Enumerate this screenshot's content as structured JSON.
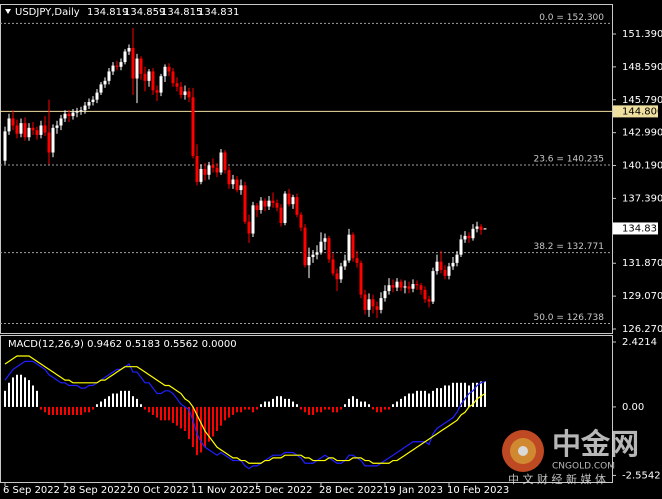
{
  "chart_data": {
    "type": "candlestick",
    "title": "USDJPY,Daily",
    "categories": [
      "6 Sep 2022",
      null,
      null,
      null,
      null,
      null,
      null,
      null,
      null,
      null,
      null,
      null,
      null,
      null,
      null,
      "28 Sep 2022",
      null,
      null,
      null,
      null,
      null,
      null,
      null,
      null,
      null,
      null,
      null,
      null,
      null,
      null,
      null,
      "20 Oct 2022",
      null,
      null,
      null,
      null,
      null,
      null,
      null,
      null,
      null,
      null,
      null,
      null,
      null,
      null,
      null,
      "11 Nov 2022",
      null,
      null,
      null,
      null,
      null,
      null,
      null,
      null,
      null,
      null,
      null,
      null,
      null,
      null,
      null,
      "5 Dec 2022",
      null,
      null,
      null,
      null,
      null,
      null,
      null,
      null,
      null,
      null,
      null,
      null,
      null,
      null,
      null,
      "28 Dec 2022",
      null,
      null,
      null,
      null,
      null,
      null,
      null,
      null,
      null,
      null,
      null,
      null,
      null,
      null,
      null,
      "19 Jan 2023",
      null,
      null,
      null,
      null,
      null,
      null,
      null,
      null,
      null,
      null,
      null,
      null,
      null,
      null,
      null,
      "10 Feb 2023",
      null,
      null,
      null,
      null,
      null,
      null,
      null,
      null,
      null
    ],
    "candles": [
      [
        140.6,
        143.5,
        140.3,
        143.1
      ],
      [
        143.1,
        144.6,
        142.8,
        144.2
      ],
      [
        144.2,
        144.9,
        143.2,
        143.6
      ],
      [
        143.6,
        144.1,
        142.5,
        142.9
      ],
      [
        142.9,
        144.2,
        142.6,
        143.8
      ],
      [
        143.8,
        144.3,
        142.3,
        142.6
      ],
      [
        142.6,
        143.8,
        142.3,
        143.4
      ],
      [
        143.4,
        143.9,
        142.8,
        143.2
      ],
      [
        143.2,
        143.5,
        142.4,
        142.8
      ],
      [
        142.8,
        144.0,
        142.5,
        143.6
      ],
      [
        143.6,
        144.4,
        142.7,
        143.0
      ],
      [
        143.0,
        145.8,
        140.3,
        141.3
      ],
      [
        141.3,
        143.7,
        140.9,
        143.4
      ],
      [
        143.4,
        144.0,
        142.9,
        143.6
      ],
      [
        143.6,
        144.5,
        143.2,
        144.2
      ],
      [
        144.2,
        144.9,
        143.9,
        144.6
      ],
      [
        144.6,
        144.9,
        143.9,
        144.4
      ],
      [
        144.4,
        145.0,
        144.1,
        144.7
      ],
      [
        144.7,
        145.1,
        144.3,
        144.8
      ],
      [
        144.8,
        145.2,
        144.5,
        144.9
      ],
      [
        144.9,
        145.6,
        144.6,
        145.3
      ],
      [
        145.3,
        145.9,
        145.0,
        145.6
      ],
      [
        145.6,
        146.1,
        145.3,
        145.8
      ],
      [
        145.8,
        146.7,
        145.5,
        146.4
      ],
      [
        146.4,
        147.3,
        146.2,
        147.1
      ],
      [
        147.1,
        147.7,
        146.8,
        147.4
      ],
      [
        147.4,
        148.5,
        147.1,
        148.2
      ],
      [
        148.2,
        149.0,
        147.9,
        148.7
      ],
      [
        148.7,
        149.1,
        148.3,
        148.6
      ],
      [
        148.6,
        149.3,
        148.3,
        149.0
      ],
      [
        149.0,
        150.1,
        148.8,
        149.9
      ],
      [
        149.9,
        150.5,
        149.6,
        150.2
      ],
      [
        150.2,
        151.9,
        146.2,
        147.6
      ],
      [
        147.6,
        149.7,
        145.5,
        149.3
      ],
      [
        149.3,
        149.5,
        147.5,
        148.0
      ],
      [
        148.0,
        148.6,
        146.5,
        147.4
      ],
      [
        147.4,
        148.4,
        146.9,
        148.2
      ],
      [
        148.2,
        148.5,
        146.2,
        146.6
      ],
      [
        146.6,
        147.0,
        145.7,
        146.4
      ],
      [
        146.4,
        148.0,
        146.1,
        147.8
      ],
      [
        147.8,
        148.8,
        147.3,
        148.6
      ],
      [
        148.6,
        148.9,
        147.8,
        148.2
      ],
      [
        148.2,
        148.5,
        146.9,
        147.2
      ],
      [
        147.2,
        147.7,
        146.5,
        146.9
      ],
      [
        146.9,
        147.3,
        145.9,
        146.2
      ],
      [
        146.2,
        147.0,
        145.8,
        146.5
      ],
      [
        146.5,
        146.8,
        145.6,
        146.0
      ],
      [
        146.0,
        146.8,
        140.8,
        141.0
      ],
      [
        141.0,
        142.0,
        138.5,
        138.8
      ],
      [
        138.8,
        140.3,
        138.6,
        139.9
      ],
      [
        139.9,
        140.4,
        138.9,
        139.4
      ],
      [
        139.4,
        140.5,
        139.0,
        140.2
      ],
      [
        140.2,
        140.8,
        139.6,
        140.0
      ],
      [
        140.0,
        140.4,
        139.2,
        139.6
      ],
      [
        139.6,
        141.6,
        139.4,
        141.3
      ],
      [
        141.3,
        141.5,
        139.5,
        139.8
      ],
      [
        139.8,
        140.1,
        138.2,
        138.6
      ],
      [
        138.6,
        139.4,
        138.2,
        139.0
      ],
      [
        139.0,
        139.3,
        137.9,
        138.1
      ],
      [
        138.1,
        139.0,
        137.7,
        138.5
      ],
      [
        138.5,
        138.8,
        135.2,
        135.4
      ],
      [
        135.4,
        136.0,
        133.6,
        134.4
      ],
      [
        134.4,
        137.1,
        134.1,
        136.8
      ],
      [
        136.8,
        137.0,
        135.8,
        136.4
      ],
      [
        136.4,
        137.5,
        136.1,
        137.2
      ],
      [
        137.2,
        137.4,
        136.3,
        136.7
      ],
      [
        136.7,
        137.6,
        136.4,
        137.2
      ],
      [
        137.2,
        137.9,
        136.6,
        137.0
      ],
      [
        137.0,
        137.3,
        136.3,
        136.6
      ],
      [
        136.6,
        136.9,
        135.0,
        135.3
      ],
      [
        135.3,
        138.0,
        135.1,
        137.8
      ],
      [
        137.8,
        138.2,
        136.7,
        136.9
      ],
      [
        136.9,
        137.7,
        136.5,
        137.5
      ],
      [
        137.5,
        137.8,
        135.8,
        136.0
      ],
      [
        136.0,
        136.2,
        134.6,
        134.9
      ],
      [
        134.9,
        135.2,
        131.5,
        131.7
      ],
      [
        131.7,
        133.2,
        130.6,
        132.4
      ],
      [
        132.4,
        133.0,
        131.9,
        132.6
      ],
      [
        132.6,
        133.4,
        132.2,
        132.8
      ],
      [
        132.8,
        134.5,
        132.6,
        133.7
      ],
      [
        133.7,
        134.4,
        133.0,
        134.0
      ],
      [
        134.0,
        134.2,
        131.9,
        132.2
      ],
      [
        132.2,
        132.7,
        130.8,
        131.0
      ],
      [
        131.0,
        131.4,
        129.5,
        130.5
      ],
      [
        130.5,
        131.9,
        130.2,
        131.6
      ],
      [
        131.6,
        132.6,
        131.3,
        132.1
      ],
      [
        132.1,
        134.8,
        131.9,
        134.3
      ],
      [
        134.3,
        134.5,
        132.0,
        132.3
      ],
      [
        132.3,
        132.9,
        131.5,
        131.9
      ],
      [
        131.9,
        132.1,
        128.9,
        129.2
      ],
      [
        129.2,
        129.6,
        127.5,
        127.9
      ],
      [
        127.9,
        129.3,
        127.3,
        128.8
      ],
      [
        128.8,
        129.2,
        127.6,
        128.2
      ],
      [
        128.2,
        128.6,
        127.2,
        127.9
      ],
      [
        127.9,
        129.4,
        127.6,
        128.9
      ],
      [
        128.9,
        130.0,
        128.6,
        129.5
      ],
      [
        129.5,
        130.6,
        129.2,
        130.0
      ],
      [
        130.0,
        130.5,
        129.4,
        129.8
      ],
      [
        129.8,
        130.6,
        129.5,
        130.3
      ],
      [
        130.3,
        130.5,
        129.5,
        129.8
      ],
      [
        129.8,
        130.4,
        129.3,
        129.9
      ],
      [
        129.9,
        130.3,
        129.3,
        129.7
      ],
      [
        129.7,
        130.5,
        129.4,
        130.1
      ],
      [
        130.1,
        130.4,
        129.6,
        130.0
      ],
      [
        130.0,
        130.2,
        129.2,
        129.6
      ],
      [
        129.6,
        129.9,
        128.5,
        128.8
      ],
      [
        128.8,
        129.1,
        128.1,
        128.6
      ],
      [
        128.6,
        131.5,
        128.4,
        131.2
      ],
      [
        131.2,
        132.6,
        130.9,
        132.0
      ],
      [
        132.0,
        132.9,
        131.0,
        131.3
      ],
      [
        131.3,
        131.7,
        130.5,
        130.8
      ],
      [
        130.8,
        131.9,
        130.5,
        131.6
      ],
      [
        131.6,
        132.4,
        131.3,
        131.9
      ],
      [
        131.9,
        132.9,
        131.6,
        132.6
      ],
      [
        132.6,
        134.3,
        132.4,
        133.9
      ],
      [
        133.9,
        134.6,
        133.6,
        134.2
      ],
      [
        134.2,
        134.5,
        133.6,
        134.0
      ],
      [
        134.0,
        135.2,
        133.8,
        134.8
      ],
      [
        134.8,
        135.4,
        134.5,
        135.0
      ],
      [
        135.0,
        135.2,
        134.3,
        134.7
      ],
      [
        134.819,
        134.859,
        134.815,
        134.831
      ]
    ],
    "up_color": "#ffffff",
    "down_color": "#ff0000",
    "ylim": [
      125.93,
      153.86
    ],
    "yticks": [
      {
        "value": 151.39,
        "label": "151.390"
      },
      {
        "value": 148.59,
        "label": "148.590"
      },
      {
        "value": 145.79,
        "label": "145.790"
      },
      {
        "value": 142.99,
        "label": "142.990"
      },
      {
        "value": 140.19,
        "label": "140.190"
      },
      {
        "value": 137.39,
        "label": "137.390"
      },
      {
        "value": 131.87,
        "label": "131.870"
      },
      {
        "value": 129.07,
        "label": "129.070"
      },
      {
        "value": 126.27,
        "label": "126.270"
      }
    ],
    "levels": [
      {
        "value": 152.3,
        "label": "0.0 = 152.300"
      },
      {
        "value": 140.235,
        "label": "23.6 = 140.235"
      },
      {
        "value": 132.771,
        "label": "38.2 = 132.771"
      },
      {
        "value": 126.738,
        "label": "50.0 = 126.738"
      }
    ],
    "hline": {
      "value": 144.8,
      "label": "144.800",
      "color": "#f0e0a0"
    },
    "macd": {
      "label": "MACD(12,26,9) 0.9462 0.5183 0.5562 0.0000",
      "ylim": [
        -2.8,
        2.645
      ],
      "yticks": [
        2.4214,
        {
          "value": 0,
          "label": "0.00"
        },
        -2.5542
      ],
      "histogram": {
        "up_color": "#ffffff",
        "down_color": "#ff0000",
        "values": [
          0.6,
          0.9,
          1.1,
          1.2,
          1.2,
          1.1,
          1.0,
          0.8,
          0.6,
          -0.1,
          -0.2,
          -0.3,
          -0.3,
          -0.3,
          -0.3,
          -0.3,
          -0.3,
          -0.3,
          -0.3,
          -0.3,
          -0.2,
          -0.2,
          -0.1,
          0.1,
          0.2,
          0.3,
          0.4,
          0.5,
          0.5,
          0.6,
          0.6,
          0.6,
          0.4,
          0.3,
          0.1,
          -0.1,
          -0.2,
          -0.3,
          -0.4,
          -0.5,
          -0.5,
          -0.5,
          -0.6,
          -0.7,
          -0.8,
          -0.9,
          -1.2,
          -1.5,
          -1.8,
          -1.7,
          -1.5,
          -1.3,
          -1.1,
          -0.9,
          -0.7,
          -0.5,
          -0.4,
          -0.3,
          -0.2,
          -0.2,
          -0.1,
          -0.1,
          -0.2,
          -0.1,
          0.1,
          0.2,
          0.2,
          0.3,
          0.4,
          0.4,
          0.3,
          0.3,
          0.2,
          0.1,
          -0.1,
          -0.2,
          -0.3,
          -0.3,
          -0.2,
          -0.2,
          -0.1,
          -0.1,
          -0.2,
          -0.2,
          -0.1,
          0.1,
          0.3,
          0.4,
          0.3,
          0.2,
          0.2,
          0.1,
          -0.1,
          -0.2,
          -0.2,
          -0.1,
          -0.1,
          0.1,
          0.2,
          0.3,
          0.4,
          0.5,
          0.5,
          0.6,
          0.6,
          0.6,
          0.5,
          0.6,
          0.7,
          0.7,
          0.8,
          0.8,
          0.9,
          0.9,
          0.9,
          0.9,
          0.8,
          0.9,
          0.9,
          0.95,
          0.95
        ]
      },
      "series": [
        {
          "color": "#2020ff",
          "values": [
            1.0,
            1.2,
            1.4,
            1.5,
            1.6,
            1.7,
            1.7,
            1.7,
            1.6,
            1.5,
            1.4,
            1.2,
            1.1,
            1.0,
            0.9,
            0.9,
            0.8,
            0.8,
            0.8,
            0.7,
            0.7,
            0.8,
            0.8,
            0.9,
            1.0,
            1.1,
            1.2,
            1.3,
            1.4,
            1.4,
            1.5,
            1.6,
            1.3,
            1.3,
            1.1,
            0.9,
            0.9,
            0.7,
            0.5,
            0.5,
            0.6,
            0.6,
            0.5,
            0.3,
            0.1,
            0.0,
            -0.1,
            -0.5,
            -1.0,
            -1.3,
            -1.5,
            -1.6,
            -1.7,
            -1.8,
            -1.7,
            -1.8,
            -1.9,
            -2.0,
            -2.0,
            -2.0,
            -2.2,
            -2.3,
            -2.2,
            -2.2,
            -2.1,
            -2.0,
            -1.9,
            -1.8,
            -1.8,
            -1.8,
            -1.7,
            -1.7,
            -1.7,
            -1.8,
            -1.9,
            -2.1,
            -2.1,
            -2.1,
            -2.0,
            -1.9,
            -1.8,
            -1.9,
            -2.0,
            -2.1,
            -2.1,
            -2.0,
            -1.8,
            -1.8,
            -1.9,
            -2.0,
            -2.2,
            -2.2,
            -2.2,
            -2.2,
            -2.1,
            -2.0,
            -1.9,
            -1.8,
            -1.7,
            -1.6,
            -1.5,
            -1.4,
            -1.3,
            -1.3,
            -1.3,
            -1.3,
            -1.4,
            -1.0,
            -0.8,
            -0.7,
            -0.6,
            -0.5,
            -0.4,
            -0.2,
            0.1,
            0.3,
            0.5,
            0.6,
            0.8,
            0.9,
            0.95
          ]
        },
        {
          "color": "#ffff00",
          "values": [
            1.6,
            1.7,
            1.8,
            1.9,
            1.9,
            1.9,
            1.9,
            1.8,
            1.7,
            1.6,
            1.5,
            1.4,
            1.3,
            1.2,
            1.1,
            1.0,
            1.0,
            0.9,
            0.9,
            0.9,
            0.9,
            0.9,
            0.9,
            0.9,
            1.0,
            1.0,
            1.1,
            1.2,
            1.3,
            1.4,
            1.5,
            1.5,
            1.5,
            1.5,
            1.4,
            1.3,
            1.2,
            1.1,
            1.0,
            0.9,
            0.8,
            0.8,
            0.7,
            0.6,
            0.5,
            0.3,
            0.2,
            0.0,
            -0.3,
            -0.6,
            -0.9,
            -1.1,
            -1.3,
            -1.5,
            -1.6,
            -1.7,
            -1.8,
            -1.9,
            -1.9,
            -2.0,
            -2.0,
            -2.1,
            -2.1,
            -2.1,
            -2.1,
            -2.0,
            -2.0,
            -1.9,
            -1.9,
            -1.9,
            -1.8,
            -1.8,
            -1.8,
            -1.8,
            -1.8,
            -1.9,
            -1.9,
            -2.0,
            -2.0,
            -2.0,
            -2.0,
            -1.9,
            -1.9,
            -2.0,
            -2.0,
            -2.0,
            -2.0,
            -1.9,
            -1.9,
            -1.9,
            -2.0,
            -2.0,
            -2.1,
            -2.1,
            -2.1,
            -2.1,
            -2.1,
            -2.0,
            -2.0,
            -1.9,
            -1.8,
            -1.7,
            -1.6,
            -1.5,
            -1.4,
            -1.3,
            -1.2,
            -1.1,
            -1.0,
            -0.9,
            -0.8,
            -0.7,
            -0.6,
            -0.5,
            -0.3,
            -0.2,
            0.0,
            0.1,
            0.3,
            0.4,
            0.5
          ]
        }
      ]
    }
  },
  "watermark": {
    "brand": "中金网",
    "site": "CNGOLD.COM",
    "slogan": "中 文 财 经 新 媒 体"
  }
}
